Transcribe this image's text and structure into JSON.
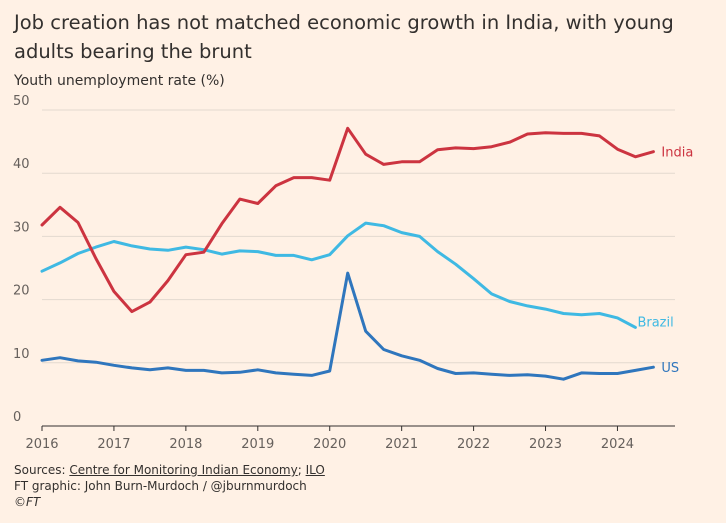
{
  "title": "Job creation has not matched economic growth in India, with young adults bearing the brunt",
  "subtitle": "Youth unemployment rate (%)",
  "footer": {
    "sources_prefix": "Sources:",
    "source_1": "Centre for Monitoring Indian Economy",
    "separator": ";",
    "source_2": "ILO",
    "credit": "FT graphic: John Burn-Murdoch / @jburnmurdoch",
    "copyright": "©FT"
  },
  "colors": {
    "background": "#fff1e5",
    "grid": "#e3d9cf",
    "axis": "#66605c",
    "india": "#cc3440",
    "brazil": "#3fb9e3",
    "us": "#2f76bd"
  },
  "chart_data": {
    "type": "line",
    "title": "Job creation has not matched economic growth in India, with young adults bearing the brunt",
    "ylabel": "Youth unemployment rate (%)",
    "xlabel": "",
    "xlim": [
      2016,
      2024.8
    ],
    "ylim": [
      0,
      50
    ],
    "x_ticks": [
      2016,
      2017,
      2018,
      2019,
      2020,
      2021,
      2022,
      2023,
      2024
    ],
    "y_ticks": [
      0,
      10,
      20,
      30,
      40,
      50
    ],
    "grid": true,
    "series": [
      {
        "name": "India",
        "x": [
          2016.0,
          2016.25,
          2016.5,
          2016.75,
          2017.0,
          2017.25,
          2017.5,
          2017.75,
          2018.0,
          2018.25,
          2018.5,
          2018.75,
          2019.0,
          2019.25,
          2019.5,
          2019.75,
          2020.0,
          2020.25,
          2020.5,
          2020.75,
          2021.0,
          2021.25,
          2021.5,
          2021.75,
          2022.0,
          2022.25,
          2022.5,
          2022.75,
          2023.0,
          2023.25,
          2023.5,
          2023.75,
          2024.0,
          2024.25,
          2024.5
        ],
        "values": [
          31.8,
          34.6,
          32.2,
          26.5,
          21.3,
          18.1,
          19.6,
          23.0,
          27.1,
          27.5,
          32.0,
          35.9,
          35.2,
          38.0,
          39.3,
          39.3,
          38.9,
          47.1,
          43.0,
          41.4,
          41.8,
          41.8,
          43.7,
          44.0,
          43.9,
          44.2,
          44.9,
          46.2,
          46.4,
          46.3,
          46.3,
          45.9,
          43.8,
          42.6,
          43.4
        ]
      },
      {
        "name": "Brazil",
        "x": [
          2016.0,
          2016.25,
          2016.5,
          2016.75,
          2017.0,
          2017.25,
          2017.5,
          2017.75,
          2018.0,
          2018.25,
          2018.5,
          2018.75,
          2019.0,
          2019.25,
          2019.5,
          2019.75,
          2020.0,
          2020.25,
          2020.5,
          2020.75,
          2021.0,
          2021.25,
          2021.5,
          2021.75,
          2022.0,
          2022.25,
          2022.5,
          2022.75,
          2023.0,
          2023.25,
          2023.5,
          2023.75,
          2024.0,
          2024.25
        ],
        "values": [
          24.5,
          25.8,
          27.3,
          28.3,
          29.2,
          28.5,
          28.0,
          27.8,
          28.3,
          27.9,
          27.2,
          27.7,
          27.6,
          27.0,
          27.0,
          26.3,
          27.1,
          30.1,
          32.1,
          31.7,
          30.6,
          30.0,
          27.6,
          25.6,
          23.3,
          20.9,
          19.7,
          19.0,
          18.5,
          17.8,
          17.6,
          17.8,
          17.1,
          15.6
        ]
      },
      {
        "name": "US",
        "x": [
          2016.0,
          2016.25,
          2016.5,
          2016.75,
          2017.0,
          2017.25,
          2017.5,
          2017.75,
          2018.0,
          2018.25,
          2018.5,
          2018.75,
          2019.0,
          2019.25,
          2019.5,
          2019.75,
          2020.0,
          2020.25,
          2020.5,
          2020.75,
          2021.0,
          2021.25,
          2021.5,
          2021.75,
          2022.0,
          2022.25,
          2022.5,
          2022.75,
          2023.0,
          2023.25,
          2023.5,
          2023.75,
          2024.0,
          2024.25,
          2024.5
        ],
        "values": [
          10.4,
          10.8,
          10.3,
          10.1,
          9.6,
          9.2,
          8.9,
          9.2,
          8.8,
          8.8,
          8.4,
          8.5,
          8.9,
          8.4,
          8.2,
          8.0,
          8.7,
          24.2,
          15.0,
          12.1,
          11.1,
          10.4,
          9.1,
          8.3,
          8.4,
          8.2,
          8.0,
          8.1,
          7.9,
          7.4,
          8.4,
          8.3,
          8.3,
          8.8,
          9.3
        ]
      }
    ]
  }
}
